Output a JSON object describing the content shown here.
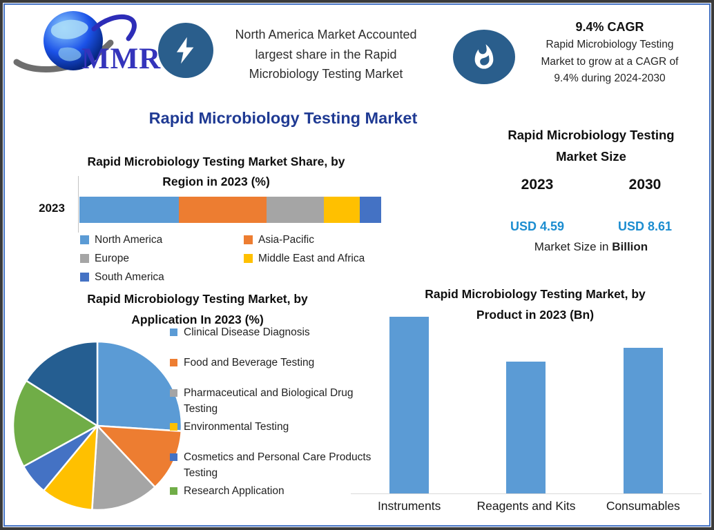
{
  "page": {
    "title": "Rapid Microbiology Testing Market"
  },
  "header": {
    "logo": {
      "text": "MMR"
    },
    "na_highlight": {
      "lines": [
        "North America Market Accounted",
        "largest share in the Rapid",
        "Microbiology Testing Market"
      ]
    },
    "cagr_highlight": {
      "headline": "9.4% CAGR",
      "lines": [
        "Rapid Microbiology Testing",
        "Market to grow at a CAGR of",
        "9.4% during 2024-2030"
      ]
    }
  },
  "market_size_panel": {
    "title_lines": [
      "Rapid Microbiology Testing",
      "Market Size"
    ],
    "columns": [
      {
        "year": "2023",
        "value": "USD 4.59"
      },
      {
        "year": "2030",
        "value": "USD 8.61"
      }
    ],
    "footnote_prefix": "Market Size in",
    "footnote_bold": "Billion",
    "value_color": "#1C8DD0"
  },
  "chart_data": [
    {
      "id": "region_share",
      "type": "bar",
      "variant": "stacked-horizontal",
      "title": "Rapid Microbiology Testing Market Share, by Region in 2023 (%)",
      "title_lines": [
        "Rapid Microbiology Testing Market Share, by",
        "Region in 2023 (%)"
      ],
      "category": "2023",
      "series": [
        {
          "name": "North America",
          "value": 33,
          "color": "#5B9BD5"
        },
        {
          "name": "Asia-Pacific",
          "value": 29,
          "color": "#ED7D31"
        },
        {
          "name": "Europe",
          "value": 19,
          "color": "#A5A5A5"
        },
        {
          "name": "Middle East and Africa",
          "value": 12,
          "color": "#FFC000"
        },
        {
          "name": "South America",
          "value": 7,
          "color": "#4472C4"
        }
      ],
      "xlim": [
        0,
        100
      ],
      "grid": false,
      "legend_position": "bottom"
    },
    {
      "id": "application_pie",
      "type": "pie",
      "title": "Rapid Microbiology Testing Market, by Application In 2023 (%)",
      "title_lines": [
        "Rapid Microbiology Testing Market, by",
        "Application In 2023 (%)"
      ],
      "slices": [
        {
          "label": "Clinical Disease Diagnosis",
          "value": 26,
          "color": "#5B9BD5"
        },
        {
          "label": "Food and Beverage Testing",
          "value": 12,
          "color": "#ED7D31"
        },
        {
          "label": "Pharmaceutical and Biological Drug Testing",
          "value": 13,
          "color": "#A5A5A5"
        },
        {
          "label": "Environmental Testing",
          "value": 10,
          "color": "#FFC000"
        },
        {
          "label": "Cosmetics and Personal Care Products Testing",
          "value": 6,
          "color": "#4472C4"
        },
        {
          "label": "Research Application",
          "value": 17,
          "color": "#70AD47"
        },
        {
          "label": "",
          "value": 16,
          "color": "#255E91"
        }
      ],
      "legend_position": "right",
      "note": "values estimated from slice angles; navy slice has no visible legend label"
    },
    {
      "id": "product_bar",
      "type": "bar",
      "title": "Rapid Microbiology Testing Market, by Product in 2023 (Bn)",
      "title_lines": [
        "Rapid Microbiology Testing Market, by",
        "Product in 2023 (Bn)"
      ],
      "categories": [
        "Instruments",
        "Reagents and Kits",
        "Consumables"
      ],
      "values": [
        1.79,
        1.33,
        1.47
      ],
      "ylim": [
        0,
        1.85
      ],
      "bar_color": "#5B9BD5",
      "grid": false,
      "note": "no y-axis shown; values estimated from relative bar heights"
    }
  ],
  "colors": {
    "accent_title": "#1F3A93",
    "badge": "#2A5E8C",
    "value_blue": "#1C8DD0",
    "frame_outer": "#3A3A3A",
    "frame_inner": "#4472C4"
  }
}
